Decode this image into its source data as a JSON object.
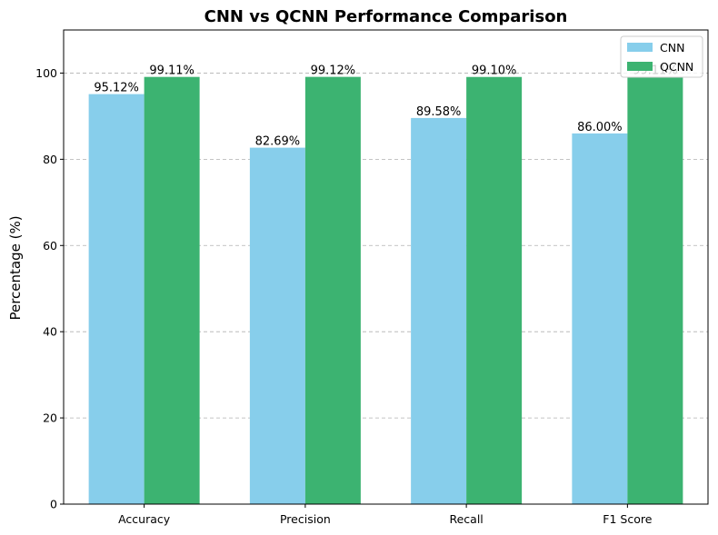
{
  "chart_data": {
    "type": "bar",
    "title": "CNN vs QCNN Performance Comparison",
    "xlabel": "",
    "ylabel": "Percentage (%)",
    "categories": [
      "Accuracy",
      "Precision",
      "Recall",
      "F1 Score"
    ],
    "series": [
      {
        "name": "CNN",
        "values": [
          95.12,
          82.69,
          89.58,
          86.0
        ],
        "labels": [
          "95.12%",
          "82.69%",
          "89.58%",
          "86.00%"
        ],
        "color": "#87CEEB"
      },
      {
        "name": "QCNN",
        "values": [
          99.11,
          99.12,
          99.1,
          99.11
        ],
        "labels": [
          "99.11%",
          "99.12%",
          "99.10%",
          "99.11%"
        ],
        "color": "#3CB371"
      }
    ],
    "ylim": [
      0,
      110
    ],
    "yticks": [
      0,
      20,
      40,
      60,
      80,
      100
    ],
    "grid": "y-dashed",
    "legend": "top-right"
  }
}
